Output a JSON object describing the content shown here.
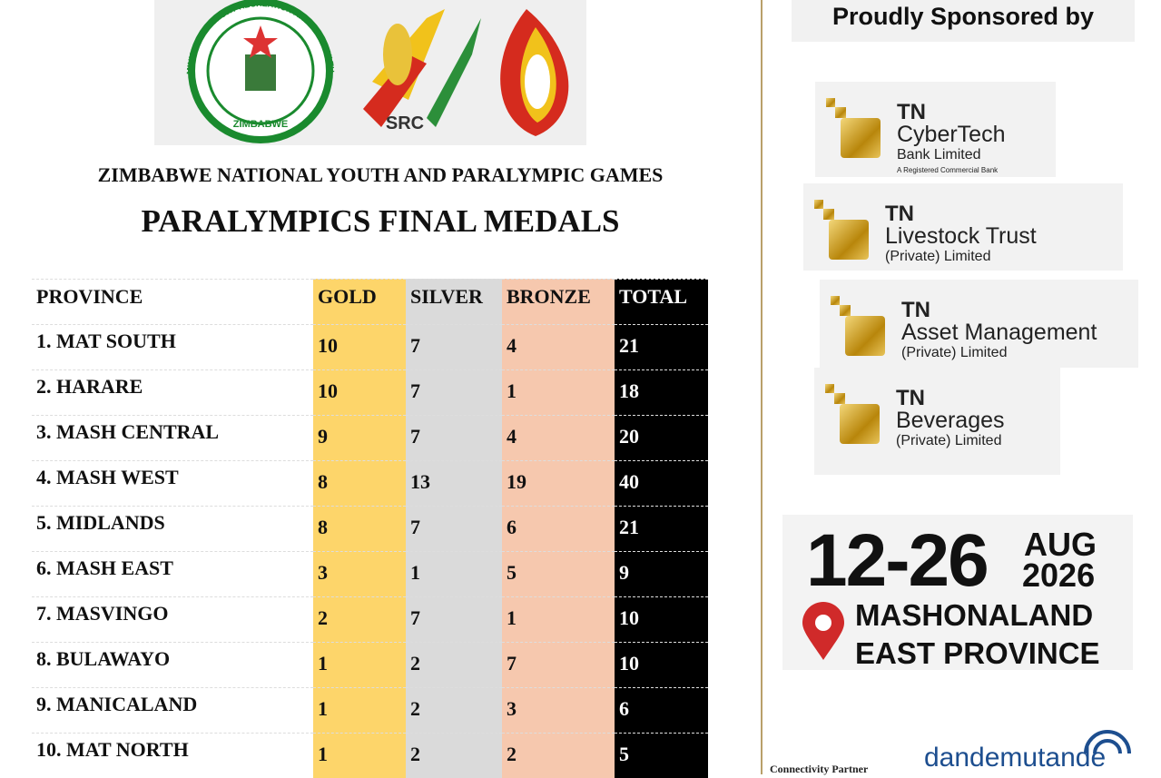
{
  "header": {
    "seal_text": "MINISTRY OF SPORT RECREATION ARTS AND CULTURE",
    "seal_country": "ZIMBABWE",
    "src_label": "SRC",
    "event": "ZIMBABWE NATIONAL YOUTH AND PARALYMPIC GAMES",
    "title": "PARALYMPICS FINAL MEDALS"
  },
  "table": {
    "columns": [
      "PROVINCE",
      "GOLD",
      "SILVER",
      "BRONZE",
      "TOTAL"
    ],
    "rows": [
      [
        "1. MAT SOUTH",
        10,
        7,
        4,
        21
      ],
      [
        "2. HARARE",
        10,
        7,
        1,
        18
      ],
      [
        "3. MASH CENTRAL",
        9,
        7,
        4,
        20
      ],
      [
        "4. MASH WEST",
        8,
        13,
        19,
        40
      ],
      [
        "5. MIDLANDS",
        8,
        7,
        6,
        21
      ],
      [
        "6. MASH EAST",
        3,
        1,
        5,
        9
      ],
      [
        "7. MASVINGO",
        2,
        7,
        1,
        10
      ],
      [
        "8. BULAWAYO",
        1,
        2,
        7,
        10
      ],
      [
        "9. MANICALAND",
        1,
        2,
        3,
        6
      ],
      [
        "10. MAT NORTH",
        1,
        2,
        2,
        5
      ]
    ]
  },
  "sidebar": {
    "heading": "Proudly Sponsored by",
    "sponsors": [
      {
        "mark": "TN",
        "name": "CyberTech",
        "detail": "Bank Limited",
        "note": "A Registered Commercial Bank"
      },
      {
        "mark": "TN",
        "name": "Livestock Trust",
        "detail": "(Private) Limited"
      },
      {
        "mark": "TN",
        "name": "Asset Management",
        "detail": "(Private) Limited"
      },
      {
        "mark": "TN",
        "name": "Beverages",
        "detail": "(Private) Limited"
      }
    ],
    "dates": {
      "range": "12-26",
      "month": "AUG",
      "year": "2026",
      "place_line1": "MASHONALAND",
      "place_line2": "EAST PROVINCE"
    },
    "partner_label": "Connectivity Partner",
    "partner": "dandemutande"
  }
}
